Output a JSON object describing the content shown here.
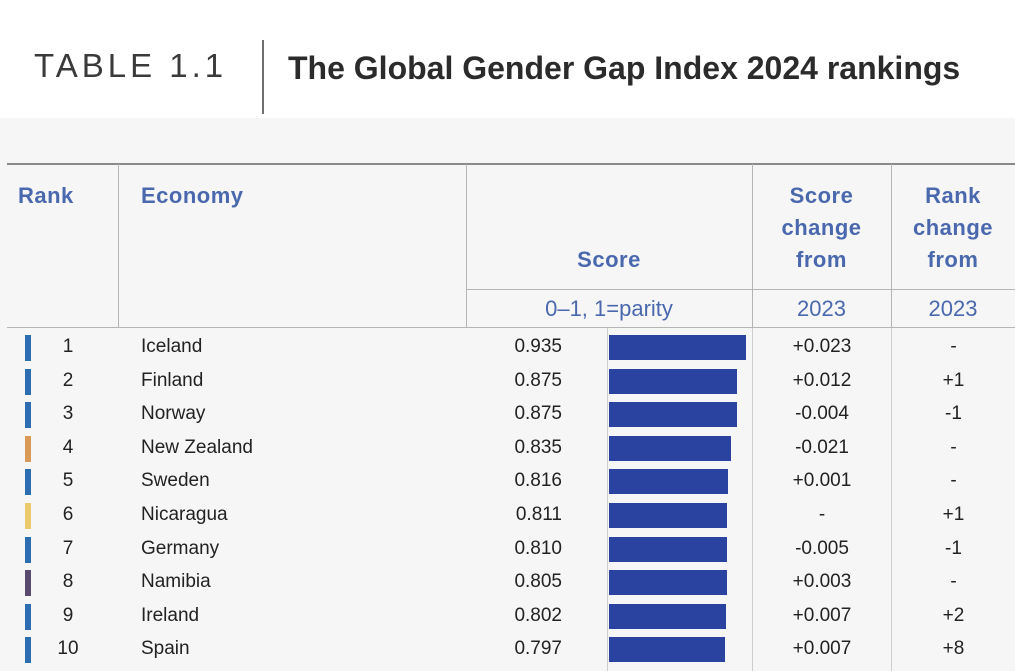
{
  "header": {
    "table_label": "TABLE 1.1",
    "title": "The Global Gender Gap Index 2024 rankings"
  },
  "columns": {
    "rank": "Rank",
    "economy": "Economy",
    "score": "Score",
    "score_sub": "0–1, 1=parity",
    "score_change_lines": [
      "Score",
      "change",
      "from"
    ],
    "score_change_sub": "2023",
    "rank_change_lines": [
      "Rank",
      "change",
      "from"
    ],
    "rank_change_sub": "2023"
  },
  "colors": {
    "header_text": "#4a68ae",
    "bar": "#2a43a1"
  },
  "rows": [
    {
      "rank": "1",
      "economy": "Iceland",
      "score": "0.935",
      "score_value": 0.935,
      "score_change": "+0.023",
      "rank_change": "-",
      "marker_color": "#2f6db3"
    },
    {
      "rank": "2",
      "economy": "Finland",
      "score": "0.875",
      "score_value": 0.875,
      "score_change": "+0.012",
      "rank_change": "+1",
      "marker_color": "#2f6db3"
    },
    {
      "rank": "3",
      "economy": "Norway",
      "score": "0.875",
      "score_value": 0.875,
      "score_change": "-0.004",
      "rank_change": "-1",
      "marker_color": "#2f6db3"
    },
    {
      "rank": "4",
      "economy": "New Zealand",
      "score": "0.835",
      "score_value": 0.835,
      "score_change": "-0.021",
      "rank_change": "-",
      "marker_color": "#d99a57"
    },
    {
      "rank": "5",
      "economy": "Sweden",
      "score": "0.816",
      "score_value": 0.816,
      "score_change": "+0.001",
      "rank_change": "-",
      "marker_color": "#2f6db3"
    },
    {
      "rank": "6",
      "economy": "Nicaragua",
      "score": "0.811",
      "score_value": 0.811,
      "score_change": "-",
      "rank_change": "+1",
      "marker_color": "#ecc96a"
    },
    {
      "rank": "7",
      "economy": "Germany",
      "score": "0.810",
      "score_value": 0.81,
      "score_change": "-0.005",
      "rank_change": "-1",
      "marker_color": "#2f6db3"
    },
    {
      "rank": "8",
      "economy": "Namibia",
      "score": "0.805",
      "score_value": 0.805,
      "score_change": "+0.003",
      "rank_change": "-",
      "marker_color": "#5a4a6e"
    },
    {
      "rank": "9",
      "economy": "Ireland",
      "score": "0.802",
      "score_value": 0.802,
      "score_change": "+0.007",
      "rank_change": "+2",
      "marker_color": "#2f6db3"
    },
    {
      "rank": "10",
      "economy": "Spain",
      "score": "0.797",
      "score_value": 0.797,
      "score_change": "+0.007",
      "rank_change": "+8",
      "marker_color": "#2f6db3"
    }
  ]
}
